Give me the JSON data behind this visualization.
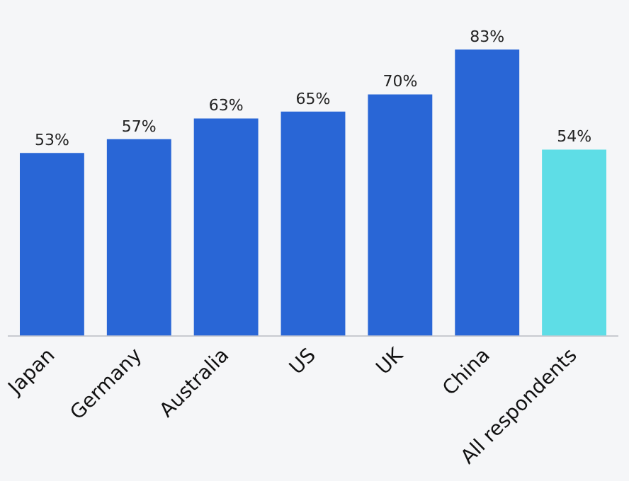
{
  "chart_data": {
    "type": "bar",
    "categories": [
      "Japan",
      "Germany",
      "Australia",
      "US",
      "UK",
      "China",
      "All respondents"
    ],
    "values": [
      53,
      57,
      63,
      65,
      70,
      83,
      54
    ],
    "colors": [
      "#2966d6",
      "#2966d6",
      "#2966d6",
      "#2966d6",
      "#2966d6",
      "#2966d6",
      "#5edde6"
    ],
    "value_labels": [
      "53%",
      "57%",
      "63%",
      "65%",
      "70%",
      "83%",
      "54%"
    ],
    "grid": false,
    "legend": false
  }
}
